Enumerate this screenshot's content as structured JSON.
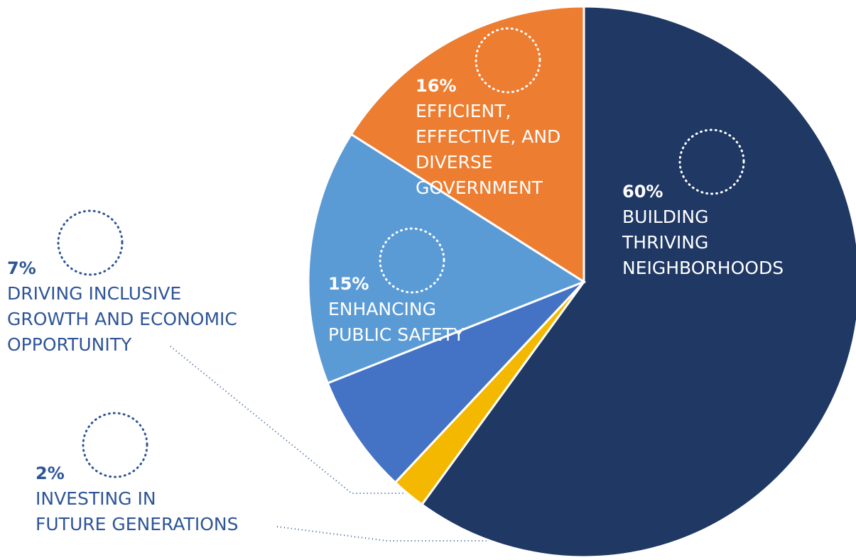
{
  "chart_data": {
    "type": "pie",
    "categories": [
      "BUILDING\nTHRIVING\nNEIGHBORHOODS",
      "INVESTING IN\nFUTURE GENERATIONS",
      "DRIVING INCLUSIVE\nGROWTH AND ECONOMIC\nOPPORTUNITY",
      "ENHANCING\nPUBLIC SAFETY",
      "EFFICIENT,\nEFFECTIVE, AND\nDIVERSE\nGOVERNMENT"
    ],
    "values": [
      60,
      2,
      7,
      15,
      16
    ],
    "value_labels": [
      "60%",
      "2%",
      "7%",
      "15%",
      "16%"
    ],
    "colors": [
      "#1f3864",
      "#f5b800",
      "#4472c4",
      "#5b9bd5",
      "#ed7d31"
    ]
  }
}
